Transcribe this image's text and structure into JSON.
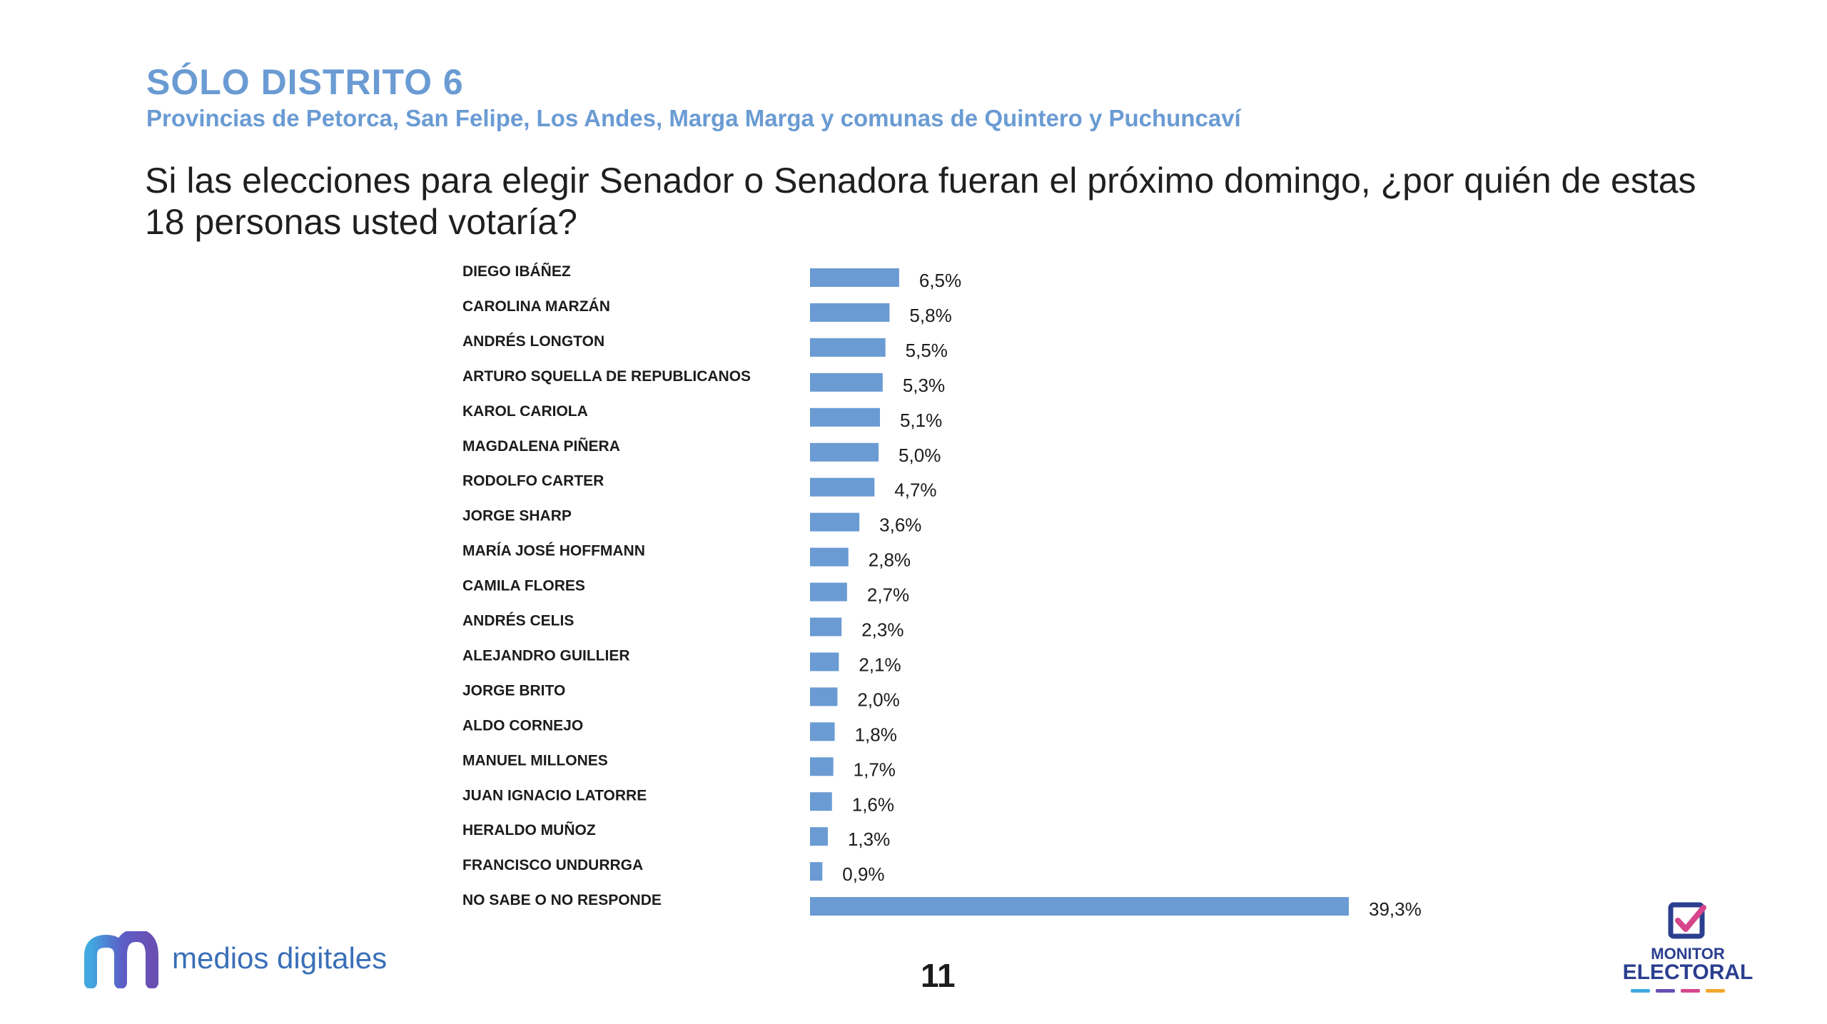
{
  "header": {
    "title": "SÓLO DISTRITO 6",
    "subtitle": "Provincias de Petorca, San Felipe, Los Andes, Marga Marga y comunas de Quintero y Puchuncaví"
  },
  "question": "Si las elecciones para elegir Senador o Senadora fueran el próximo domingo, ¿por quién de estas 18 personas usted votaría?",
  "footer": {
    "left_logo_text": "medios digitales",
    "page_number": "11",
    "right_logo_line1": "MONITOR",
    "right_logo_line2": "ELECTORAL"
  },
  "colors": {
    "bar": "#6a9bd3",
    "accent_blue": "#6a9bd3",
    "logo_dashes": [
      "#41a9e0",
      "#6a4fb3",
      "#d6468c",
      "#f2a72c"
    ]
  },
  "icons": {
    "left_logo": "medios-digitales-m-logo",
    "right_logo": "ballot-checkbox-icon"
  },
  "chart_data": {
    "type": "bar",
    "orientation": "horizontal",
    "categories": [
      "DIEGO IBÁÑEZ",
      "CAROLINA MARZÁN",
      "ANDRÉS LONGTON",
      "ARTURO SQUELLA DE REPUBLICANOS",
      "KAROL CARIOLA",
      "MAGDALENA PIÑERA",
      "RODOLFO CARTER",
      "JORGE SHARP",
      "MARÍA JOSÉ HOFFMANN",
      "CAMILA FLORES",
      "ANDRÉS CELIS",
      "ALEJANDRO GUILLIER",
      "JORGE BRITO",
      "ALDO CORNEJO",
      "MANUEL MILLONES",
      "JUAN IGNACIO LATORRE",
      "HERALDO MUÑOZ",
      "FRANCISCO UNDURRGA",
      "NO SABE O NO RESPONDE"
    ],
    "values": [
      6.5,
      5.8,
      5.5,
      5.3,
      5.1,
      5.0,
      4.7,
      3.6,
      2.8,
      2.7,
      2.3,
      2.1,
      2.0,
      1.8,
      1.7,
      1.6,
      1.3,
      0.9,
      39.3
    ],
    "labels": [
      "6,5%",
      "5,8%",
      "5,5%",
      "5,3%",
      "5,1%",
      "5,0%",
      "4,7%",
      "3,6%",
      "2,8%",
      "2,7%",
      "2,3%",
      "2,1%",
      "2,0%",
      "1,8%",
      "1,7%",
      "1,6%",
      "1,3%",
      "0,9%",
      "39,3%"
    ],
    "unit": "%",
    "xlim": [
      0,
      39.3
    ],
    "grid": false,
    "legend": "none"
  }
}
